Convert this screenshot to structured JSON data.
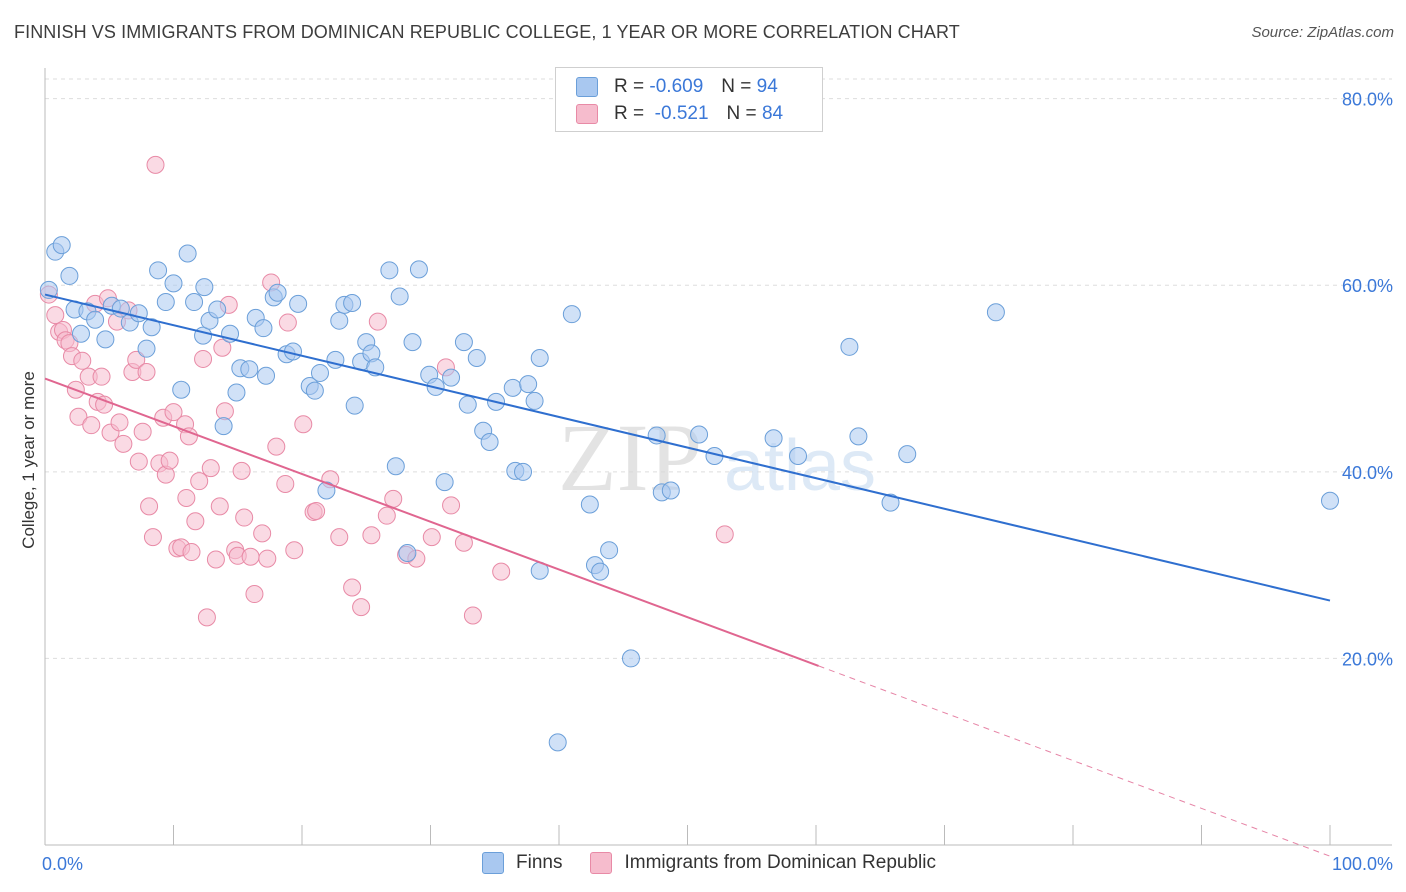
{
  "title": "FINNISH VS IMMIGRANTS FROM DOMINICAN REPUBLIC COLLEGE, 1 YEAR OR MORE CORRELATION CHART",
  "source": "Source: ZipAtlas.com",
  "watermark": {
    "zip": "ZIP",
    "atlas": "atlas"
  },
  "legend": {
    "finns": {
      "r_label": "R =",
      "r_value": "-0.609",
      "n_label": "N =",
      "n_value": "94"
    },
    "dominican": {
      "r_label": "R =",
      "r_value": "-0.521",
      "n_label": "N =",
      "n_value": "84"
    }
  },
  "bottom_legend": {
    "finns": "Finns",
    "dominican": "Immigrants from Dominican Republic"
  },
  "colors": {
    "finns_fill": "#a9c8f0",
    "finns_stroke": "#6b9fd9",
    "finns_line": "#2f6fcf",
    "dom_fill": "#f6bccd",
    "dom_stroke": "#e88aa6",
    "dom_line": "#e06690",
    "tick_label": "#3b78d8",
    "grid": "#dddddd"
  },
  "chart_data": {
    "type": "scatter",
    "title": "FINNISH VS IMMIGRANTS FROM DOMINICAN REPUBLIC COLLEGE, 1 YEAR OR MORE CORRELATION CHART",
    "xlabel": "",
    "ylabel": "College, 1 year or more",
    "xlim": [
      0,
      100
    ],
    "ylim": [
      0,
      82
    ],
    "x_tick_labels": [
      "0.0%",
      "100.0%"
    ],
    "y_ticks": [
      20,
      40,
      60,
      80
    ],
    "y_tick_labels": [
      "20.0%",
      "40.0%",
      "60.0%",
      "80.0%"
    ],
    "grid": true,
    "legend_position": "top-center",
    "series": [
      {
        "name": "Finns",
        "trend": {
          "x": [
            0,
            100
          ],
          "y": [
            59.0,
            26.2
          ]
        },
        "points": [
          [
            0.3,
            59.5
          ],
          [
            0.8,
            63.6
          ],
          [
            1.3,
            64.3
          ],
          [
            1.9,
            61.0
          ],
          [
            2.3,
            57.4
          ],
          [
            2.8,
            54.8
          ],
          [
            3.3,
            57.2
          ],
          [
            3.9,
            56.3
          ],
          [
            4.7,
            54.2
          ],
          [
            5.2,
            57.8
          ],
          [
            5.9,
            57.5
          ],
          [
            6.6,
            56.0
          ],
          [
            7.3,
            57.0
          ],
          [
            7.9,
            53.2
          ],
          [
            8.3,
            55.5
          ],
          [
            8.8,
            61.6
          ],
          [
            9.4,
            58.2
          ],
          [
            10.0,
            60.2
          ],
          [
            10.6,
            48.8
          ],
          [
            11.1,
            63.4
          ],
          [
            11.6,
            58.2
          ],
          [
            12.3,
            54.6
          ],
          [
            12.4,
            59.8
          ],
          [
            12.8,
            56.2
          ],
          [
            13.4,
            57.4
          ],
          [
            13.9,
            44.9
          ],
          [
            14.4,
            54.8
          ],
          [
            14.9,
            48.5
          ],
          [
            15.2,
            51.1
          ],
          [
            15.9,
            51.0
          ],
          [
            16.4,
            56.5
          ],
          [
            17.0,
            55.4
          ],
          [
            17.2,
            50.3
          ],
          [
            17.8,
            58.7
          ],
          [
            18.1,
            59.2
          ],
          [
            18.8,
            52.6
          ],
          [
            19.3,
            52.9
          ],
          [
            19.7,
            58.0
          ],
          [
            20.6,
            49.2
          ],
          [
            21.0,
            48.7
          ],
          [
            21.4,
            50.6
          ],
          [
            21.9,
            38.0
          ],
          [
            22.6,
            52.0
          ],
          [
            22.9,
            56.2
          ],
          [
            23.3,
            57.9
          ],
          [
            23.9,
            58.1
          ],
          [
            24.1,
            47.1
          ],
          [
            24.6,
            51.8
          ],
          [
            25.0,
            53.9
          ],
          [
            25.4,
            52.7
          ],
          [
            25.7,
            51.2
          ],
          [
            26.8,
            61.6
          ],
          [
            27.3,
            40.6
          ],
          [
            27.6,
            58.8
          ],
          [
            28.2,
            31.3
          ],
          [
            28.6,
            53.9
          ],
          [
            29.1,
            61.7
          ],
          [
            29.9,
            50.4
          ],
          [
            30.4,
            49.1
          ],
          [
            31.1,
            38.9
          ],
          [
            31.6,
            50.1
          ],
          [
            32.6,
            53.9
          ],
          [
            32.9,
            47.2
          ],
          [
            33.6,
            52.2
          ],
          [
            34.1,
            44.4
          ],
          [
            34.6,
            43.2
          ],
          [
            35.1,
            47.5
          ],
          [
            36.4,
            49.0
          ],
          [
            36.6,
            40.1
          ],
          [
            37.2,
            40.0
          ],
          [
            37.6,
            49.4
          ],
          [
            38.1,
            47.6
          ],
          [
            38.5,
            52.2
          ],
          [
            38.5,
            29.4
          ],
          [
            39.9,
            11.0
          ],
          [
            41.0,
            56.9
          ],
          [
            42.4,
            36.5
          ],
          [
            42.8,
            30.0
          ],
          [
            43.2,
            29.3
          ],
          [
            43.9,
            31.6
          ],
          [
            45.6,
            20.0
          ],
          [
            47.6,
            43.9
          ],
          [
            48.0,
            37.8
          ],
          [
            48.7,
            38.0
          ],
          [
            50.9,
            44.0
          ],
          [
            52.1,
            41.7
          ],
          [
            56.7,
            43.6
          ],
          [
            58.6,
            41.7
          ],
          [
            62.6,
            53.4
          ],
          [
            63.3,
            43.8
          ],
          [
            65.8,
            36.7
          ],
          [
            67.1,
            41.9
          ],
          [
            74.0,
            57.1
          ],
          [
            100.0,
            36.9
          ]
        ]
      },
      {
        "name": "Immigrants from Dominican Republic",
        "trend": {
          "x": [
            0,
            60.2,
            100
          ],
          "y": [
            50.0,
            19.2,
            -1.2
          ]
        },
        "points": [
          [
            0.3,
            59.0
          ],
          [
            0.8,
            56.8
          ],
          [
            1.1,
            55.0
          ],
          [
            1.4,
            55.2
          ],
          [
            1.6,
            54.1
          ],
          [
            1.9,
            53.8
          ],
          [
            2.1,
            52.4
          ],
          [
            2.4,
            48.8
          ],
          [
            2.6,
            45.9
          ],
          [
            2.9,
            51.9
          ],
          [
            3.4,
            50.2
          ],
          [
            3.6,
            45.0
          ],
          [
            3.9,
            58.0
          ],
          [
            4.1,
            47.5
          ],
          [
            4.4,
            50.2
          ],
          [
            4.6,
            47.2
          ],
          [
            4.9,
            58.6
          ],
          [
            5.1,
            44.2
          ],
          [
            5.6,
            56.1
          ],
          [
            5.8,
            45.3
          ],
          [
            6.1,
            43.0
          ],
          [
            6.5,
            57.3
          ],
          [
            6.8,
            50.7
          ],
          [
            7.1,
            52.0
          ],
          [
            7.3,
            41.1
          ],
          [
            7.6,
            44.3
          ],
          [
            7.9,
            50.7
          ],
          [
            8.1,
            36.3
          ],
          [
            8.4,
            33.0
          ],
          [
            8.6,
            72.9
          ],
          [
            8.9,
            40.9
          ],
          [
            9.2,
            45.8
          ],
          [
            9.4,
            39.7
          ],
          [
            9.7,
            41.2
          ],
          [
            10.0,
            46.4
          ],
          [
            10.3,
            31.8
          ],
          [
            10.6,
            31.9
          ],
          [
            10.9,
            45.1
          ],
          [
            11.0,
            37.2
          ],
          [
            11.2,
            43.8
          ],
          [
            11.4,
            31.4
          ],
          [
            11.7,
            34.7
          ],
          [
            12.0,
            39.0
          ],
          [
            12.3,
            52.1
          ],
          [
            12.6,
            24.4
          ],
          [
            12.9,
            40.4
          ],
          [
            13.3,
            30.6
          ],
          [
            13.6,
            36.3
          ],
          [
            13.8,
            53.3
          ],
          [
            14.0,
            46.5
          ],
          [
            14.3,
            57.9
          ],
          [
            14.8,
            31.6
          ],
          [
            15.0,
            31.0
          ],
          [
            15.3,
            40.1
          ],
          [
            15.5,
            35.1
          ],
          [
            16.0,
            30.9
          ],
          [
            16.3,
            26.9
          ],
          [
            16.9,
            33.4
          ],
          [
            17.3,
            30.7
          ],
          [
            17.6,
            60.3
          ],
          [
            18.0,
            42.7
          ],
          [
            18.7,
            38.7
          ],
          [
            18.9,
            56.0
          ],
          [
            19.4,
            31.6
          ],
          [
            20.1,
            45.1
          ],
          [
            20.9,
            35.7
          ],
          [
            21.1,
            35.8
          ],
          [
            22.2,
            39.2
          ],
          [
            22.9,
            33.0
          ],
          [
            23.9,
            27.6
          ],
          [
            24.6,
            25.5
          ],
          [
            25.4,
            33.2
          ],
          [
            25.9,
            56.1
          ],
          [
            26.6,
            35.3
          ],
          [
            27.1,
            37.1
          ],
          [
            28.1,
            31.1
          ],
          [
            28.9,
            30.7
          ],
          [
            30.1,
            33.0
          ],
          [
            31.2,
            51.2
          ],
          [
            31.6,
            36.4
          ],
          [
            32.6,
            32.4
          ],
          [
            33.3,
            24.6
          ],
          [
            35.5,
            29.3
          ],
          [
            52.9,
            33.3
          ]
        ]
      }
    ]
  }
}
